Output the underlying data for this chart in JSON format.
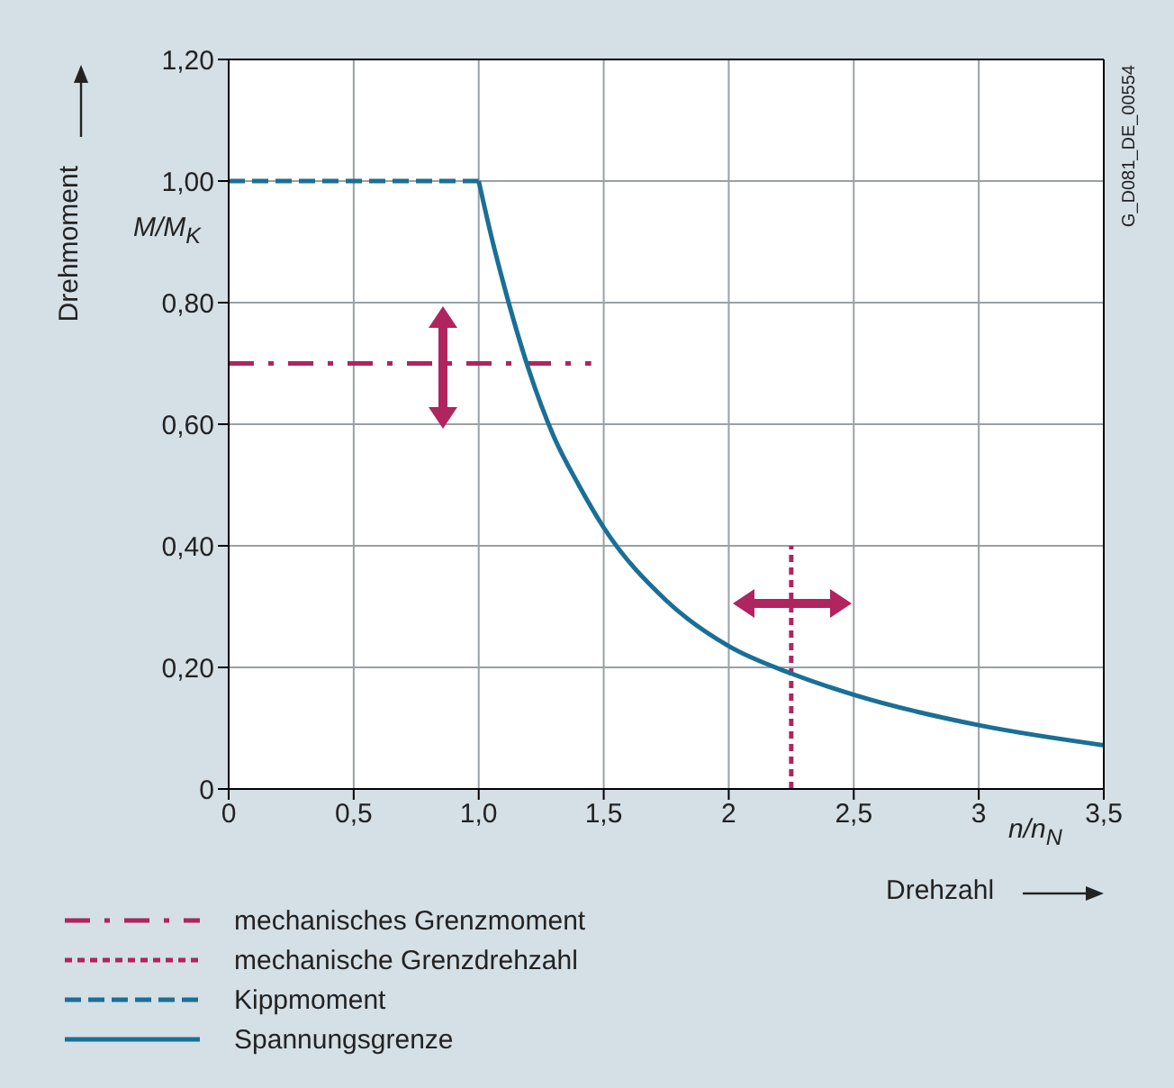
{
  "chart_data": {
    "type": "line",
    "xlabel": "Drehzahl",
    "ylabel": "Drehmoment",
    "annotations": [
      "M/M$_{K}$",
      "n/n$_{N}$",
      "G_D081_DE_00554"
    ],
    "xlim": [
      0,
      3.5
    ],
    "xticks": [
      0,
      {
        "value": 0.5,
        "label": "0,5"
      },
      {
        "value": 1,
        "label": "1,0"
      },
      {
        "value": 1.5,
        "label": "1,5"
      },
      2,
      {
        "value": 2.5,
        "label": "2,5"
      },
      3,
      {
        "value": 3.5,
        "label": "3,5"
      }
    ],
    "ylim": [
      0,
      1.2
    ],
    "yticks": [
      0,
      {
        "value": 0.2,
        "label": "0,20"
      },
      {
        "value": 0.4,
        "label": "0,40"
      },
      {
        "value": 0.6,
        "label": "0,60"
      },
      {
        "value": 0.8,
        "label": "0,80"
      },
      {
        "value": 1,
        "label": "1,00"
      },
      {
        "value": 1.2,
        "label": "1,20"
      }
    ],
    "grid": true,
    "legend": "bottom",
    "marker": "none",
    "series": [
      {
        "name": "mechanisches Grenzmoment",
        "color": "#b0245f",
        "line_style": "dashdot",
        "x": [
          0,
          1.45
        ],
        "values": [
          0.7,
          0.7
        ]
      },
      {
        "name": "mechanische Grenzdrehzahl",
        "color": "#b0245f",
        "line_style": "dotted",
        "x": [
          2.25,
          2.25
        ],
        "values": [
          0,
          0.4
        ]
      },
      {
        "name": "Kippmoment",
        "color": "#1a6f96",
        "line_style": "dashed",
        "x": [
          0,
          1
        ],
        "values": [
          1,
          1
        ]
      },
      {
        "name": "Spannungsgrenze",
        "color": "#1a6f96",
        "line_style": "solid",
        "x": [
          1,
          1.05,
          1.1,
          1.2,
          1.3,
          1.4,
          1.5,
          1.75,
          2,
          2.25,
          2.5,
          3,
          3.5
        ],
        "values": [
          1,
          0.91,
          0.83,
          0.69,
          0.58,
          0.5,
          0.43,
          0.31,
          0.235,
          0.19,
          0.155,
          0.105,
          0.072
        ]
      }
    ]
  }
}
